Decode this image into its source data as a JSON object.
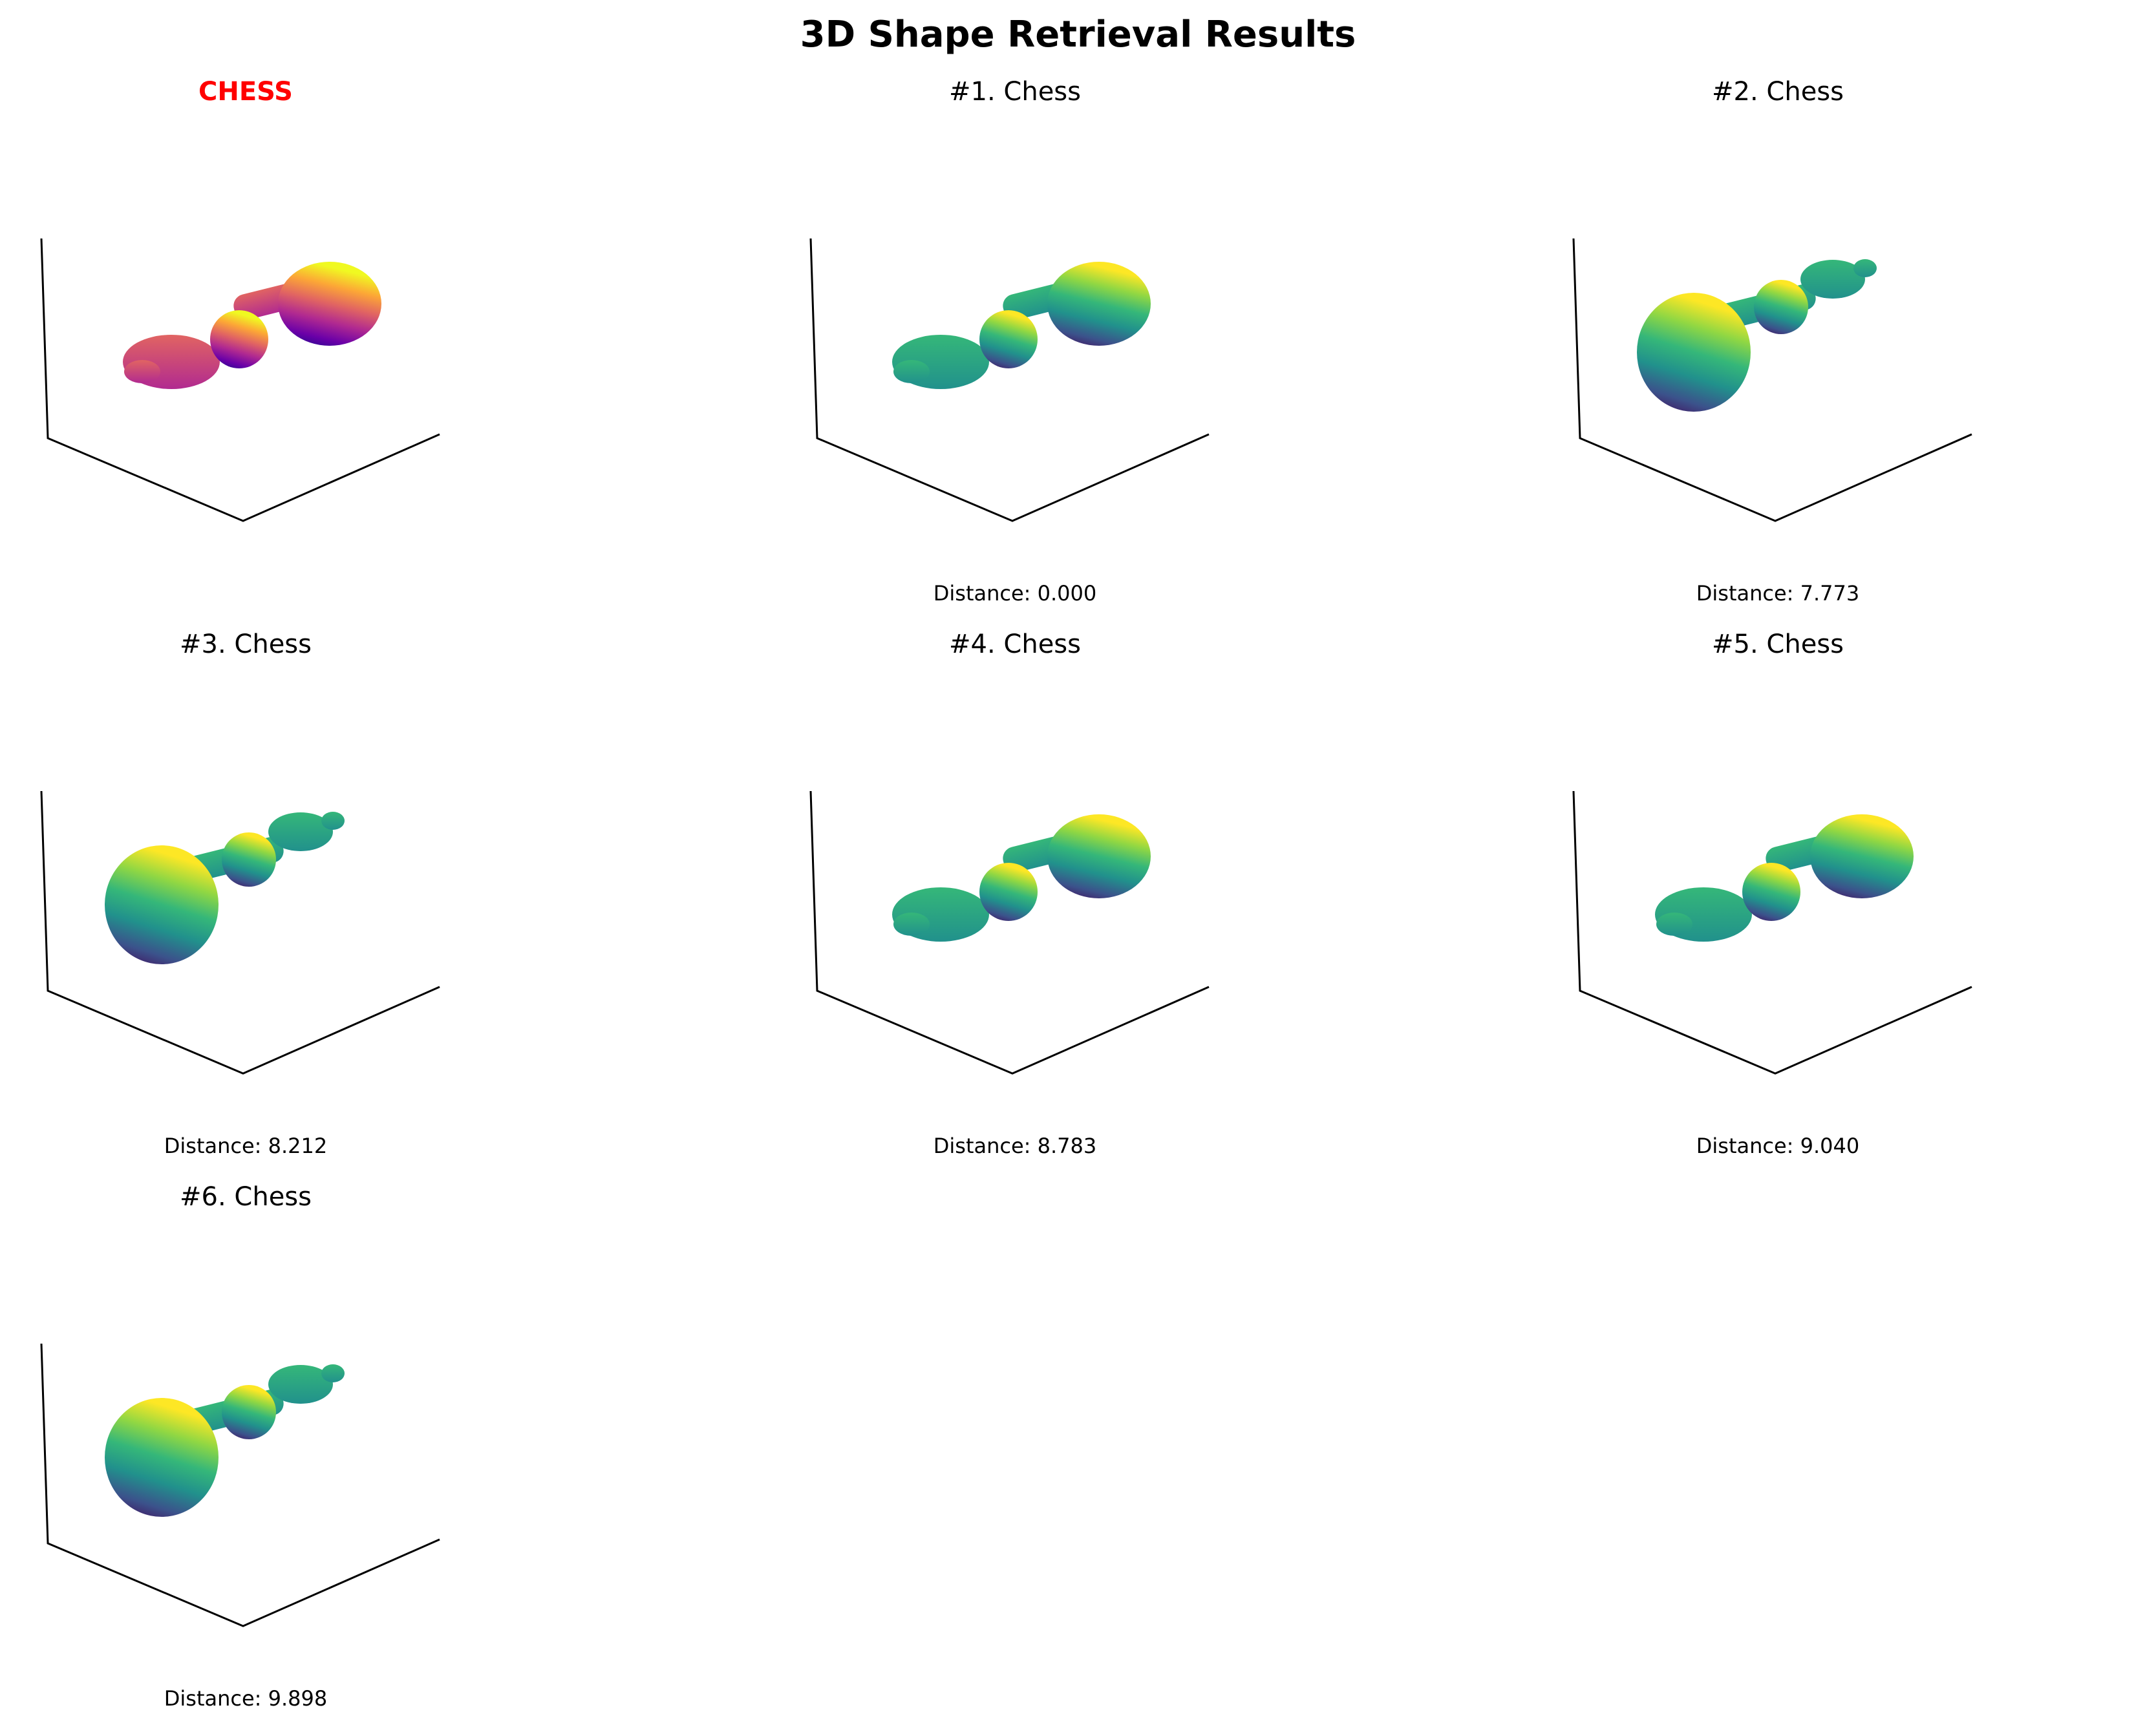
{
  "figure": {
    "title": "3D Shape Retrieval Results"
  },
  "chart_data": [
    {
      "type": "3d-surface",
      "title": "CHESS",
      "role": "query",
      "colormap": "plasma",
      "orientation": "head-right",
      "distance": ""
    },
    {
      "type": "3d-surface",
      "title": "#1. Chess",
      "role": "result",
      "rank": 1,
      "colormap": "viridis",
      "orientation": "head-right",
      "distance": "Distance: 0.000",
      "distance_value": 0.0
    },
    {
      "type": "3d-surface",
      "title": "#2. Chess",
      "role": "result",
      "rank": 2,
      "colormap": "viridis",
      "orientation": "head-left",
      "distance": "Distance: 7.773",
      "distance_value": 7.773
    },
    {
      "type": "3d-surface",
      "title": "#3. Chess",
      "role": "result",
      "rank": 3,
      "colormap": "viridis",
      "orientation": "head-left",
      "distance": "Distance: 8.212",
      "distance_value": 8.212
    },
    {
      "type": "3d-surface",
      "title": "#4. Chess",
      "role": "result",
      "rank": 4,
      "colormap": "viridis",
      "orientation": "head-right",
      "distance": "Distance: 8.783",
      "distance_value": 8.783
    },
    {
      "type": "3d-surface",
      "title": "#5. Chess",
      "role": "result",
      "rank": 5,
      "colormap": "viridis",
      "orientation": "head-right",
      "distance": "Distance: 9.040",
      "distance_value": 9.04
    },
    {
      "type": "3d-surface",
      "title": "#6. Chess",
      "role": "result",
      "rank": 6,
      "colormap": "viridis",
      "orientation": "head-left",
      "distance": "Distance: 9.898",
      "distance_value": 9.898
    }
  ],
  "colormaps": {
    "plasma": [
      "#0d0887",
      "#6a00a8",
      "#b12a90",
      "#e16462",
      "#fca636",
      "#f0f921"
    ],
    "viridis": [
      "#440154",
      "#3b528b",
      "#21918c",
      "#35b779",
      "#90d743",
      "#fde725"
    ]
  }
}
